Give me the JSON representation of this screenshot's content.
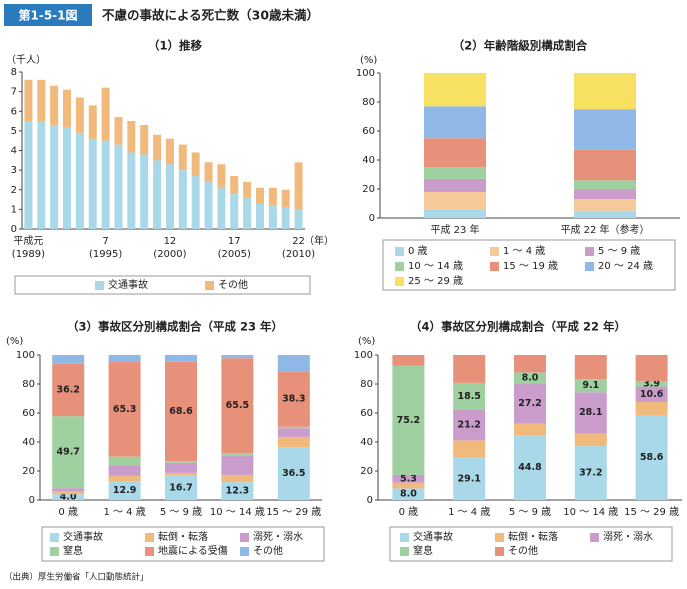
{
  "header": {
    "figure_no": "第1-5-1図",
    "title": "不慮の事故による死亡数（30歳未満）"
  },
  "source": "（出典）厚生労働省「人口動態統計」",
  "chart_data": [
    {
      "type": "stacked_bar",
      "title": "（1）推移",
      "y_unit": "（千人）",
      "x_unit": "（年）",
      "categories": [
        "平成元",
        null,
        null,
        null,
        null,
        null,
        "7",
        null,
        null,
        null,
        null,
        "12",
        null,
        null,
        null,
        null,
        "17",
        null,
        null,
        null,
        null,
        "22"
      ],
      "category_years": [
        "(1989)",
        null,
        null,
        null,
        null,
        null,
        "(1995)",
        null,
        null,
        null,
        null,
        "(2000)",
        null,
        null,
        null,
        null,
        "(2005)",
        null,
        null,
        null,
        null,
        "(2010)"
      ],
      "series": [
        {
          "name": "交通事故",
          "color": "#a9d8e8",
          "values": [
            5.5,
            5.5,
            5.3,
            5.2,
            4.9,
            4.6,
            4.5,
            4.3,
            3.9,
            3.8,
            3.5,
            3.3,
            3.0,
            2.7,
            2.4,
            2.1,
            1.8,
            1.6,
            1.3,
            1.2,
            1.1,
            1.0
          ]
        },
        {
          "name": "その他",
          "color": "#f2b97d",
          "values": [
            2.1,
            2.1,
            2.0,
            1.9,
            1.8,
            1.7,
            2.7,
            1.4,
            1.6,
            1.5,
            1.3,
            1.3,
            1.3,
            1.2,
            1.0,
            1.2,
            0.9,
            0.8,
            0.8,
            0.9,
            0.9,
            2.4
          ]
        }
      ],
      "ylim": [
        0,
        8
      ],
      "yticks": [
        0,
        1,
        2,
        3,
        4,
        5,
        6,
        7,
        8
      ]
    },
    {
      "type": "stacked_bar",
      "title": "（2）年齢階級別構成割合",
      "y_unit": "(%)",
      "categories": [
        "平成 23 年",
        "平成 22 年（参考）"
      ],
      "series": [
        {
          "name": "0 歳",
          "color": "#a9d8e8",
          "values": [
            6,
            5
          ]
        },
        {
          "name": "1 ～ 4 歳",
          "color": "#f5c99a",
          "values": [
            12,
            8
          ]
        },
        {
          "name": "5 ～ 9 歳",
          "color": "#c99ccb",
          "values": [
            9,
            7
          ]
        },
        {
          "name": "10 ～ 14 歳",
          "color": "#9fd09f",
          "values": [
            8,
            6
          ]
        },
        {
          "name": "15 ～ 19 歳",
          "color": "#e8917a",
          "values": [
            20,
            21
          ]
        },
        {
          "name": "20 ～ 24 歳",
          "color": "#8fb8e6",
          "values": [
            22,
            28
          ]
        },
        {
          "name": "25 ～ 29 歳",
          "color": "#f8e062",
          "values": [
            23,
            25
          ]
        }
      ],
      "ylim": [
        0,
        100
      ],
      "yticks": [
        0,
        20,
        40,
        60,
        80,
        100
      ]
    },
    {
      "type": "stacked_bar",
      "title": "（3）事故区分別構成割合（平成 23 年）",
      "y_unit": "(%)",
      "categories": [
        "0 歳",
        "1 ～ 4 歳",
        "5 ～ 9 歳",
        "10 ～ 14 歳",
        "15 ～ 29 歳"
      ],
      "series": [
        {
          "name": "交通事故",
          "color": "#a9d8e8",
          "values": [
            4.0,
            12.9,
            16.7,
            12.3,
            36.5
          ],
          "value_labels": [
            "4.0",
            "12.9",
            "16.7",
            "12.3",
            "36.5"
          ]
        },
        {
          "name": "転倒・転落",
          "color": "#f2b97d",
          "values": [
            2.0,
            4.0,
            2.0,
            5.0,
            7.0
          ]
        },
        {
          "name": "溺死・溺水",
          "color": "#c99ccb",
          "values": [
            2.1,
            7.0,
            7.0,
            13.0,
            6.0
          ]
        },
        {
          "name": "窒息",
          "color": "#9fd09f",
          "values": [
            49.7,
            6.0,
            1.0,
            2.0,
            1.0
          ],
          "value_labels": [
            "49.7",
            null,
            null,
            null,
            null
          ]
        },
        {
          "name": "地震による受傷",
          "color": "#e8917a",
          "values": [
            36.2,
            65.3,
            68.6,
            65.5,
            38.3
          ],
          "value_labels": [
            "36.2",
            "65.3",
            "68.6",
            "65.5",
            "38.3"
          ]
        },
        {
          "name": "その他",
          "color": "#8fb8e6",
          "values": [
            6.0,
            4.8,
            4.7,
            2.2,
            11.2
          ]
        }
      ],
      "ylim": [
        0,
        100
      ],
      "yticks": [
        0,
        20,
        40,
        60,
        80,
        100
      ]
    },
    {
      "type": "stacked_bar",
      "title": "（4）事故区分別構成割合（平成 22 年）",
      "y_unit": "(%)",
      "categories": [
        "0 歳",
        "1 ～ 4 歳",
        "5 ～ 9 歳",
        "10 ～ 14 歳",
        "15 ～ 29 歳"
      ],
      "series": [
        {
          "name": "交通事故",
          "color": "#a9d8e8",
          "values": [
            8.0,
            29.1,
            44.8,
            37.2,
            58.6
          ],
          "value_labels": [
            "8.0",
            "29.1",
            "44.8",
            "37.2",
            "58.6"
          ]
        },
        {
          "name": "転倒・転落",
          "color": "#f2b97d",
          "values": [
            4.0,
            12.0,
            8.0,
            9.0,
            9.0
          ]
        },
        {
          "name": "溺死・溺水",
          "color": "#c99ccb",
          "values": [
            5.3,
            21.2,
            27.2,
            28.1,
            10.6
          ],
          "value_labels": [
            "5.3",
            "21.2",
            "27.2",
            "28.1",
            "10.6"
          ]
        },
        {
          "name": "窒息",
          "color": "#9fd09f",
          "values": [
            75.2,
            18.5,
            8.0,
            9.1,
            3.9
          ],
          "value_labels": [
            "75.2",
            "18.5",
            "8.0",
            "9.1",
            "3.9"
          ]
        },
        {
          "name": "その他",
          "color": "#e8917a",
          "values": [
            7.5,
            19.2,
            12.0,
            16.6,
            17.9
          ]
        }
      ],
      "ylim": [
        0,
        100
      ],
      "yticks": [
        0,
        20,
        40,
        60,
        80,
        100
      ]
    }
  ]
}
